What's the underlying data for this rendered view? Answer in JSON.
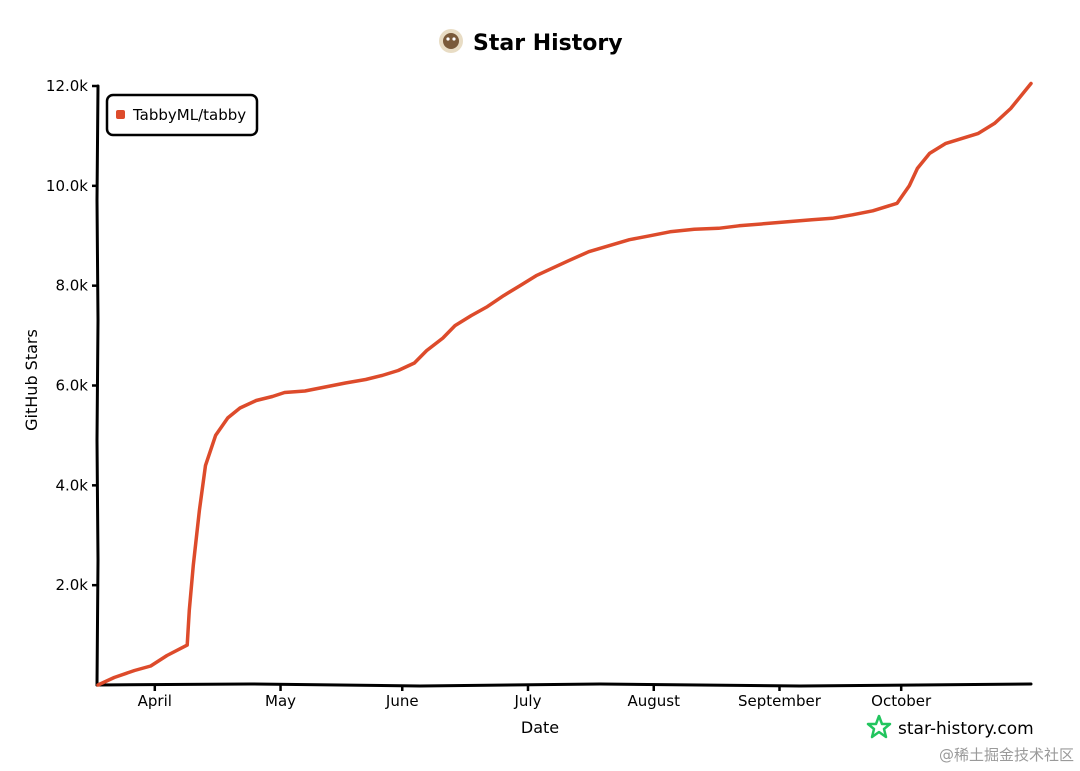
{
  "chart_data": {
    "type": "line",
    "title": "Star History",
    "xlabel": "Date",
    "ylabel": "GitHub Stars",
    "x_tick_labels": [
      "April",
      "May",
      "June",
      "July",
      "August",
      "September",
      "October"
    ],
    "x_ticks_day": [
      14,
      45,
      75,
      106,
      137,
      168,
      198
    ],
    "x_range_day": [
      0,
      230
    ],
    "y_ticks": [
      2000,
      4000,
      6000,
      8000,
      10000,
      12000
    ],
    "y_tick_labels": [
      "2.0k",
      "4.0k",
      "6.0k",
      "8.0k",
      "10.0k",
      "12.0k"
    ],
    "ylim": [
      0,
      12000
    ],
    "legend": {
      "position": "top-left"
    },
    "grid": false,
    "series": [
      {
        "name": "TabbyML/tabby",
        "color": "#dd4b2b",
        "points": [
          [
            0,
            0
          ],
          [
            4,
            150
          ],
          [
            9,
            290
          ],
          [
            13,
            380
          ],
          [
            17,
            590
          ],
          [
            22,
            800
          ],
          [
            22.5,
            1500
          ],
          [
            23.5,
            2400
          ],
          [
            25,
            3500
          ],
          [
            26.5,
            4400
          ],
          [
            29,
            5000
          ],
          [
            32,
            5350
          ],
          [
            35,
            5550
          ],
          [
            39,
            5700
          ],
          [
            43,
            5780
          ],
          [
            46,
            5860
          ],
          [
            51,
            5890
          ],
          [
            56,
            5970
          ],
          [
            61,
            6050
          ],
          [
            66,
            6120
          ],
          [
            70,
            6200
          ],
          [
            74,
            6300
          ],
          [
            78,
            6450
          ],
          [
            81,
            6700
          ],
          [
            85,
            6950
          ],
          [
            88,
            7200
          ],
          [
            92,
            7400
          ],
          [
            96,
            7580
          ],
          [
            100,
            7800
          ],
          [
            104,
            8000
          ],
          [
            108,
            8200
          ],
          [
            112,
            8350
          ],
          [
            116,
            8500
          ],
          [
            121,
            8680
          ],
          [
            126,
            8800
          ],
          [
            131,
            8920
          ],
          [
            136,
            9000
          ],
          [
            141,
            9080
          ],
          [
            147,
            9130
          ],
          [
            153,
            9150
          ],
          [
            158,
            9200
          ],
          [
            164,
            9240
          ],
          [
            170,
            9280
          ],
          [
            176,
            9320
          ],
          [
            181,
            9350
          ],
          [
            186,
            9420
          ],
          [
            191,
            9500
          ],
          [
            197,
            9650
          ],
          [
            200,
            10000
          ],
          [
            202,
            10350
          ],
          [
            205,
            10650
          ],
          [
            209,
            10850
          ],
          [
            213,
            10950
          ],
          [
            217,
            11050
          ],
          [
            221,
            11250
          ],
          [
            225,
            11550
          ],
          [
            230,
            12050
          ]
        ]
      }
    ]
  },
  "branding": {
    "site": "star-history.com",
    "watermark": "@稀土掘金技术社区"
  }
}
